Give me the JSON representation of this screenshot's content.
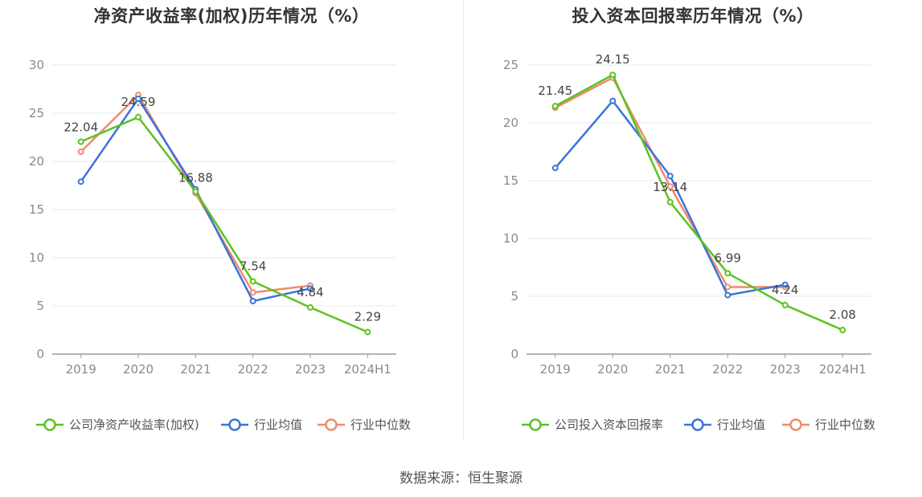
{
  "source_text": "数据来源：恒生聚源",
  "colors": {
    "company": "#5cc31f",
    "industry_avg": "#3b74d9",
    "industry_median": "#f08a6c",
    "grid": "#e6e8f2",
    "axis": "#9a9a9a"
  },
  "chart_data": [
    {
      "type": "line",
      "title": "净资产收益率(加权)历年情况（%）",
      "categories": [
        "2019",
        "2020",
        "2021",
        "2022",
        "2023",
        "2024H1"
      ],
      "ylim": [
        0,
        30
      ],
      "yticks": [
        0,
        5,
        10,
        15,
        20,
        25,
        30
      ],
      "grid": true,
      "legend_position": "bottom",
      "series": [
        {
          "name": "公司净资产收益率(加权)",
          "color": "#5cc31f",
          "values": [
            22.04,
            24.59,
            16.88,
            7.54,
            4.84,
            2.29
          ],
          "labels": [
            "22.04",
            "24.59",
            "16.88",
            "7.54",
            "4.84",
            "2.29"
          ]
        },
        {
          "name": "行业均值",
          "color": "#3b74d9",
          "values": [
            17.9,
            26.5,
            17.1,
            5.5,
            6.8,
            null
          ]
        },
        {
          "name": "行业中位数",
          "color": "#f08a6c",
          "values": [
            21.0,
            26.9,
            16.7,
            6.4,
            7.1,
            null
          ]
        }
      ]
    },
    {
      "type": "line",
      "title": "投入资本回报率历年情况（%）",
      "categories": [
        "2019",
        "2020",
        "2021",
        "2022",
        "2023",
        "2024H1"
      ],
      "ylim": [
        0,
        25
      ],
      "yticks": [
        0,
        5,
        10,
        15,
        20,
        25
      ],
      "grid": true,
      "legend_position": "bottom",
      "series": [
        {
          "name": "公司投入资本回报率",
          "color": "#5cc31f",
          "values": [
            21.45,
            24.15,
            13.14,
            6.99,
            4.24,
            2.08
          ],
          "labels": [
            "21.45",
            "24.15",
            "13.14",
            "6.99",
            "4.24",
            "2.08"
          ]
        },
        {
          "name": "行业均值",
          "color": "#3b74d9",
          "values": [
            16.1,
            21.9,
            15.4,
            5.1,
            6.0,
            null
          ]
        },
        {
          "name": "行业中位数",
          "color": "#f08a6c",
          "values": [
            21.3,
            23.9,
            14.5,
            5.8,
            5.8,
            null
          ]
        }
      ]
    }
  ]
}
